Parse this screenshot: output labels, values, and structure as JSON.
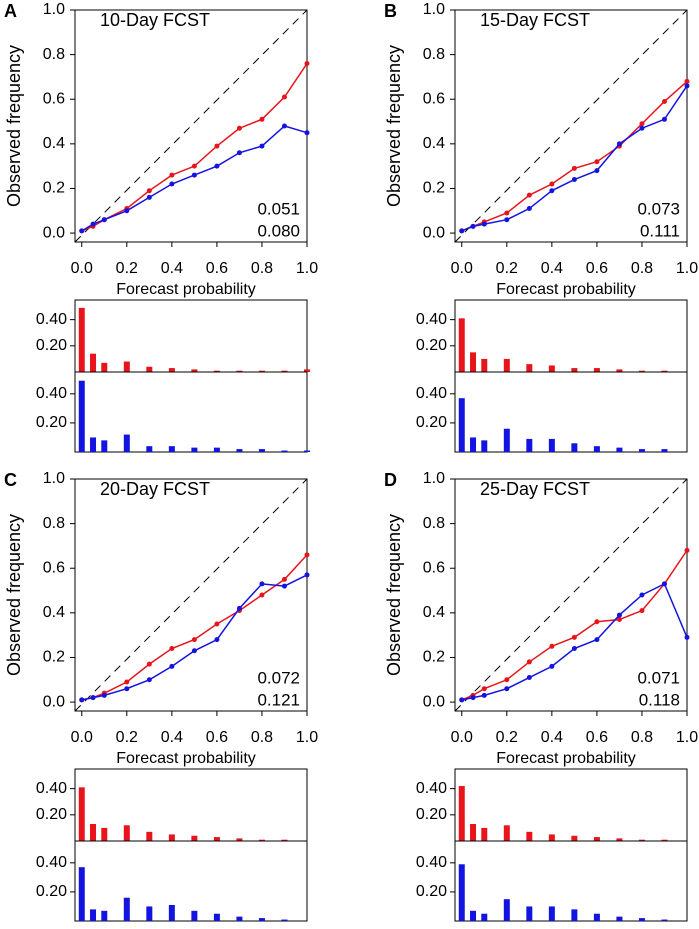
{
  "chart_data": [
    {
      "type": "reliability",
      "panel": "A",
      "title": "10-Day FCST",
      "xlabel": "Forecast probability",
      "ylabel": "Observed frequency",
      "x": [
        0,
        0.05,
        0.1,
        0.2,
        0.3,
        0.4,
        0.5,
        0.6,
        0.7,
        0.8,
        0.9,
        1.0
      ],
      "xlim": [
        -0.03,
        1.0
      ],
      "ylim": [
        -0.04,
        1.0
      ],
      "xticks": [
        {
          "value": 0,
          "label": "0.0"
        },
        {
          "value": 0.2,
          "label": "0.2"
        },
        {
          "value": 0.4,
          "label": "0.4"
        },
        {
          "value": 0.6,
          "label": "0.6"
        },
        {
          "value": 0.8,
          "label": "0.8"
        },
        {
          "value": 1.0,
          "label": "1.0"
        }
      ],
      "yticks": [
        {
          "value": 0,
          "label": "0.0"
        },
        {
          "value": 0.2,
          "label": "0.2"
        },
        {
          "value": 0.4,
          "label": "0.4"
        },
        {
          "value": 0.6,
          "label": "0.6"
        },
        {
          "value": 0.8,
          "label": "0.8"
        },
        {
          "value": 1.0,
          "label": "1.0"
        }
      ],
      "series": [
        {
          "color": "#e8141c",
          "values": [
            0.01,
            0.03,
            0.06,
            0.11,
            0.19,
            0.26,
            0.3,
            0.39,
            0.47,
            0.51,
            0.61,
            0.76
          ],
          "score": "0.051",
          "hist": [
            0.49,
            0.14,
            0.07,
            0.08,
            0.04,
            0.03,
            0.02,
            0.01,
            0.01,
            0.01,
            0.01,
            0.02
          ]
        },
        {
          "color": "#1414e0",
          "values": [
            0.01,
            0.04,
            0.06,
            0.1,
            0.16,
            0.22,
            0.26,
            0.3,
            0.36,
            0.39,
            0.48,
            0.45
          ],
          "score": "0.080",
          "hist": [
            0.49,
            0.1,
            0.08,
            0.12,
            0.04,
            0.04,
            0.03,
            0.03,
            0.02,
            0.02,
            0.01,
            0.01
          ]
        }
      ],
      "hist_ylim": [
        0,
        0.55
      ],
      "hist_yticks": [
        {
          "value": 0.2,
          "label": "0.20"
        },
        {
          "value": 0.4,
          "label": "0.40"
        }
      ]
    },
    {
      "type": "reliability",
      "panel": "B",
      "title": "15-Day FCST",
      "xlabel": "Forecast probability",
      "ylabel": "Observed frequency",
      "x": [
        0,
        0.05,
        0.1,
        0.2,
        0.3,
        0.4,
        0.5,
        0.6,
        0.7,
        0.8,
        0.9,
        1.0
      ],
      "xlim": [
        -0.03,
        1.0
      ],
      "ylim": [
        -0.04,
        1.0
      ],
      "xticks": [
        {
          "value": 0,
          "label": "0.0"
        },
        {
          "value": 0.2,
          "label": "0.2"
        },
        {
          "value": 0.4,
          "label": "0.4"
        },
        {
          "value": 0.6,
          "label": "0.6"
        },
        {
          "value": 0.8,
          "label": "0.8"
        },
        {
          "value": 1.0,
          "label": "1.0"
        }
      ],
      "yticks": [
        {
          "value": 0,
          "label": "0.0"
        },
        {
          "value": 0.2,
          "label": "0.2"
        },
        {
          "value": 0.4,
          "label": "0.4"
        },
        {
          "value": 0.6,
          "label": "0.6"
        },
        {
          "value": 0.8,
          "label": "0.8"
        },
        {
          "value": 1.0,
          "label": "1.0"
        }
      ],
      "series": [
        {
          "color": "#e8141c",
          "values": [
            0.01,
            0.03,
            0.05,
            0.09,
            0.17,
            0.22,
            0.29,
            0.32,
            0.39,
            0.49,
            0.59,
            0.68
          ],
          "score": "0.073",
          "hist": [
            0.41,
            0.15,
            0.1,
            0.1,
            0.06,
            0.05,
            0.03,
            0.03,
            0.02,
            0.01,
            0.01,
            0.0
          ]
        },
        {
          "color": "#1414e0",
          "values": [
            0.01,
            0.03,
            0.04,
            0.06,
            0.11,
            0.19,
            0.24,
            0.28,
            0.4,
            0.47,
            0.51,
            0.66
          ],
          "score": "0.111",
          "hist": [
            0.37,
            0.1,
            0.08,
            0.16,
            0.09,
            0.09,
            0.06,
            0.04,
            0.03,
            0.02,
            0.02,
            0.0
          ]
        }
      ],
      "hist_ylim": [
        0,
        0.55
      ],
      "hist_yticks": [
        {
          "value": 0.2,
          "label": "0.20"
        },
        {
          "value": 0.4,
          "label": "0.40"
        }
      ]
    },
    {
      "type": "reliability",
      "panel": "C",
      "title": "20-Day FCST",
      "xlabel": "Forecast probability",
      "ylabel": "Observed frequency",
      "x": [
        0,
        0.05,
        0.1,
        0.2,
        0.3,
        0.4,
        0.5,
        0.6,
        0.7,
        0.8,
        0.9,
        1.0
      ],
      "xlim": [
        -0.03,
        1.0
      ],
      "ylim": [
        -0.04,
        1.0
      ],
      "xticks": [
        {
          "value": 0,
          "label": "0.0"
        },
        {
          "value": 0.2,
          "label": "0.2"
        },
        {
          "value": 0.4,
          "label": "0.4"
        },
        {
          "value": 0.6,
          "label": "0.6"
        },
        {
          "value": 0.8,
          "label": "0.8"
        },
        {
          "value": 1.0,
          "label": "1.0"
        }
      ],
      "yticks": [
        {
          "value": 0,
          "label": "0.0"
        },
        {
          "value": 0.2,
          "label": "0.2"
        },
        {
          "value": 0.4,
          "label": "0.4"
        },
        {
          "value": 0.6,
          "label": "0.6"
        },
        {
          "value": 0.8,
          "label": "0.8"
        },
        {
          "value": 1.0,
          "label": "1.0"
        }
      ],
      "series": [
        {
          "color": "#e8141c",
          "values": [
            0.01,
            0.02,
            0.04,
            0.09,
            0.17,
            0.24,
            0.28,
            0.35,
            0.41,
            0.48,
            0.55,
            0.66
          ],
          "score": "0.072",
          "hist": [
            0.41,
            0.13,
            0.1,
            0.12,
            0.07,
            0.05,
            0.04,
            0.03,
            0.02,
            0.01,
            0.01,
            0.0
          ]
        },
        {
          "color": "#1414e0",
          "values": [
            0.01,
            0.02,
            0.03,
            0.06,
            0.1,
            0.16,
            0.23,
            0.28,
            0.42,
            0.53,
            0.52,
            0.57
          ],
          "score": "0.121",
          "hist": [
            0.37,
            0.08,
            0.07,
            0.16,
            0.1,
            0.11,
            0.07,
            0.05,
            0.03,
            0.02,
            0.01,
            0.0
          ]
        }
      ],
      "hist_ylim": [
        0,
        0.55
      ],
      "hist_yticks": [
        {
          "value": 0.2,
          "label": "0.20"
        },
        {
          "value": 0.4,
          "label": "0.40"
        }
      ]
    },
    {
      "type": "reliability",
      "panel": "D",
      "title": "25-Day FCST",
      "xlabel": "Forecast probability",
      "ylabel": "Observed frequency",
      "x": [
        0,
        0.05,
        0.1,
        0.2,
        0.3,
        0.4,
        0.5,
        0.6,
        0.7,
        0.8,
        0.9,
        1.0
      ],
      "xlim": [
        -0.03,
        1.0
      ],
      "ylim": [
        -0.04,
        1.0
      ],
      "xticks": [
        {
          "value": 0,
          "label": "0.0"
        },
        {
          "value": 0.2,
          "label": "0.2"
        },
        {
          "value": 0.4,
          "label": "0.4"
        },
        {
          "value": 0.6,
          "label": "0.6"
        },
        {
          "value": 0.8,
          "label": "0.8"
        },
        {
          "value": 1.0,
          "label": "1.0"
        }
      ],
      "yticks": [
        {
          "value": 0,
          "label": "0.0"
        },
        {
          "value": 0.2,
          "label": "0.2"
        },
        {
          "value": 0.4,
          "label": "0.4"
        },
        {
          "value": 0.6,
          "label": "0.6"
        },
        {
          "value": 0.8,
          "label": "0.8"
        },
        {
          "value": 1.0,
          "label": "1.0"
        }
      ],
      "series": [
        {
          "color": "#e8141c",
          "values": [
            0.01,
            0.03,
            0.06,
            0.1,
            0.18,
            0.25,
            0.29,
            0.36,
            0.37,
            0.41,
            0.53,
            0.68
          ],
          "score": "0.071",
          "hist": [
            0.42,
            0.13,
            0.1,
            0.12,
            0.07,
            0.05,
            0.04,
            0.03,
            0.02,
            0.01,
            0.01,
            0.0
          ]
        },
        {
          "color": "#1414e0",
          "values": [
            0.01,
            0.02,
            0.03,
            0.06,
            0.11,
            0.16,
            0.24,
            0.28,
            0.39,
            0.48,
            0.53,
            0.29
          ],
          "score": "0.118",
          "hist": [
            0.39,
            0.07,
            0.05,
            0.15,
            0.1,
            0.1,
            0.08,
            0.05,
            0.03,
            0.02,
            0.01,
            0.0
          ]
        }
      ],
      "hist_ylim": [
        0,
        0.55
      ],
      "hist_yticks": [
        {
          "value": 0.2,
          "label": "0.20"
        },
        {
          "value": 0.4,
          "label": "0.40"
        }
      ]
    }
  ]
}
